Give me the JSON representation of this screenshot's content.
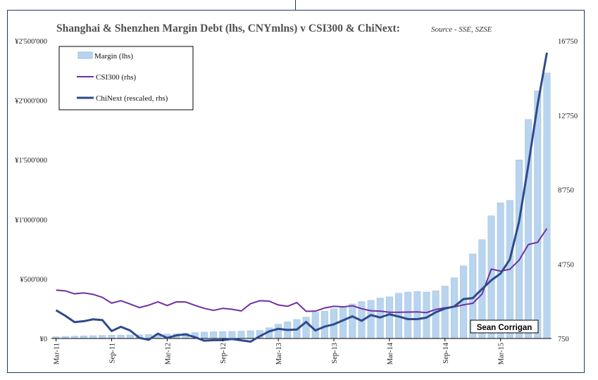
{
  "chart_data": {
    "type": "bar",
    "title": "Shanghai & Shenzhen Margin Debt (lhs, CNYmlns)  v CSI300 & ChiNext:",
    "subtitle": "Source - SSE, SZSE",
    "left_axis": {
      "ticks": [
        "¥0",
        "¥500'000",
        "¥1'000'000",
        "¥1'500'000",
        "¥2'000'000",
        "¥2'500'000"
      ],
      "ylim": [
        0,
        2500000
      ]
    },
    "right_axis": {
      "ticks": [
        "750",
        "4'750",
        "8'750",
        "12'750",
        "16'750"
      ],
      "ylim": [
        750,
        16750
      ]
    },
    "x_ticks": [
      "Mar-11",
      "Sep-11",
      "Mar-12",
      "Sep-12",
      "Mar-13",
      "Sep-13",
      "Mar-14",
      "Sep-14",
      "Mar-15"
    ],
    "x_tick_index": [
      0,
      6,
      12,
      18,
      24,
      30,
      36,
      42,
      48
    ],
    "legend": {
      "placement": "top-left",
      "entries": [
        "Margin (lhs)",
        "CSI300 (rhs)",
        "ChiNext (rescaled, rhs)"
      ]
    },
    "series": [
      {
        "name": "Margin (lhs)",
        "type": "bar",
        "axis": "left",
        "color": "#b8d4ee",
        "values": [
          15000,
          18000,
          20000,
          22000,
          24000,
          26000,
          28000,
          29000,
          30000,
          31000,
          33000,
          35000,
          38000,
          40000,
          45000,
          50000,
          54000,
          56000,
          58000,
          60000,
          62000,
          65000,
          68000,
          90000,
          120000,
          140000,
          160000,
          180000,
          220000,
          230000,
          250000,
          260000,
          290000,
          310000,
          320000,
          340000,
          350000,
          380000,
          390000,
          395000,
          390000,
          400000,
          440000,
          510000,
          610000,
          710000,
          830000,
          1030000,
          1140000,
          1160000,
          1500000,
          1840000,
          2080000,
          2230000
        ]
      },
      {
        "name": "CSI300 (rhs)",
        "type": "line",
        "axis": "right",
        "color": "#7030a0",
        "values": [
          3350,
          3310,
          3150,
          3200,
          3120,
          2960,
          2650,
          2780,
          2600,
          2410,
          2540,
          2720,
          2520,
          2720,
          2710,
          2530,
          2370,
          2260,
          2370,
          2320,
          2230,
          2620,
          2780,
          2760,
          2550,
          2480,
          2680,
          2210,
          2220,
          2390,
          2480,
          2450,
          2510,
          2350,
          2240,
          2220,
          2160,
          2160,
          2170,
          2180,
          2140,
          2310,
          2400,
          2450,
          2560,
          2640,
          3140,
          4480,
          4370,
          4470,
          4960,
          5800,
          5920,
          6660
        ]
      },
      {
        "name": "ChiNext (rescaled, rhs)",
        "type": "line",
        "axis": "right",
        "color": "#2e4a8c",
        "values": [
          2270,
          1970,
          1630,
          1680,
          1780,
          1740,
          1150,
          1380,
          1180,
          780,
          680,
          1010,
          780,
          920,
          970,
          820,
          630,
          660,
          660,
          720,
          650,
          580,
          870,
          1130,
          1270,
          1210,
          1230,
          1640,
          1180,
          1390,
          1510,
          1730,
          1940,
          1700,
          2010,
          1880,
          2050,
          1930,
          1790,
          1790,
          1870,
          2160,
          2360,
          2470,
          2870,
          2920,
          3410,
          3880,
          4240,
          5000,
          7040,
          10080,
          13320,
          16110
        ]
      }
    ]
  },
  "annotation": {
    "text": "Sean Corrigan"
  }
}
